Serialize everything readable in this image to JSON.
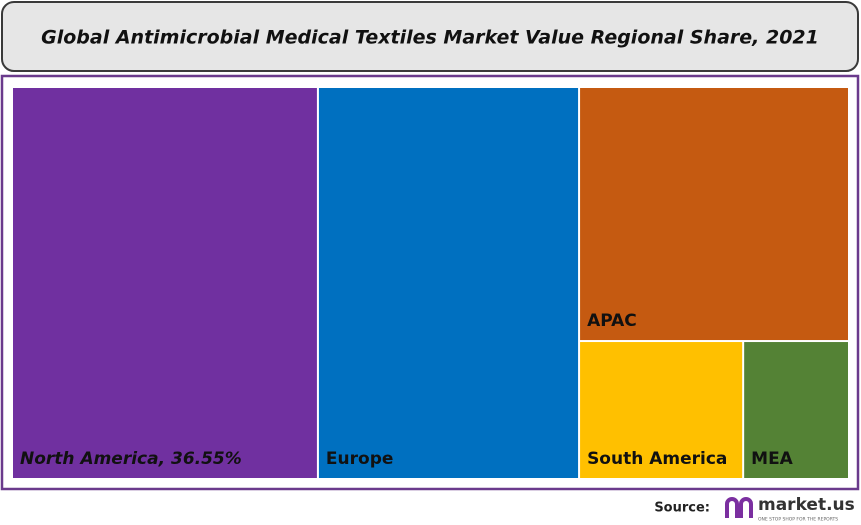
{
  "chart_data": {
    "type": "treemap",
    "title": "Global Antimicrobial Medical Textiles Market Value Regional Share, 2021",
    "categories": [
      "North America",
      "Europe",
      "APAC",
      "South America",
      "MEA"
    ],
    "values": [
      36.55,
      31.2,
      20.9,
      6.9,
      4.45
    ],
    "value_labels": [
      ", 36.55%",
      null,
      null,
      null,
      null
    ],
    "colors": [
      "#7030a0",
      "#0070c0",
      "#c55a11",
      "#ffc000",
      "#548235"
    ],
    "source_label": "Source:",
    "logo": "market.us",
    "logo_tagline": "ONE STOP SHOP FOR THE REPORTS"
  }
}
